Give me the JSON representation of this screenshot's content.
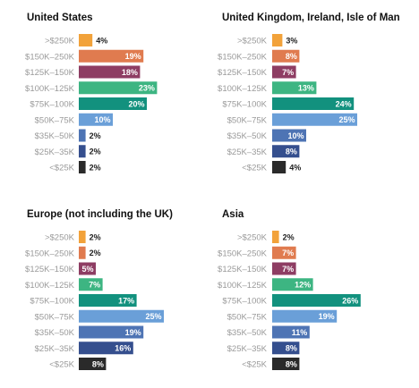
{
  "chart_data": {
    "type": "bar",
    "orientation": "horizontal",
    "categories": [
      ">$250K",
      "$150K–250K",
      "$125K–150K",
      "$100K–125K",
      "$75K–100K",
      "$50K–75K",
      "$35K–50K",
      "$25K–35K",
      "<$25K"
    ],
    "category_colors": [
      "#f2a23a",
      "#e07b4f",
      "#8e3d63",
      "#3db582",
      "#12917e",
      "#6a9fd8",
      "#4e74b4",
      "#354f8e",
      "#2a2a2a"
    ],
    "panels": [
      {
        "title": "United States",
        "values": [
          4,
          19,
          18,
          23,
          20,
          10,
          2,
          2,
          2
        ],
        "value_labels": [
          "4%",
          "19%",
          "18%",
          "23%",
          "20%",
          "10%",
          "2%",
          "2%",
          "2%"
        ]
      },
      {
        "title": "United Kingdom, Ireland, Isle of Man",
        "values": [
          3,
          8,
          7,
          13,
          24,
          25,
          10,
          8,
          4
        ],
        "value_labels": [
          "3%",
          "8%",
          "7%",
          "13%",
          "24%",
          "25%",
          "10%",
          "8%",
          "4%"
        ]
      },
      {
        "title": "Europe (not including the UK)",
        "values": [
          2,
          2,
          5,
          7,
          17,
          25,
          19,
          16,
          8
        ],
        "value_labels": [
          "2%",
          "2%",
          "5%",
          "7%",
          "17%",
          "25%",
          "19%",
          "16%",
          "8%"
        ]
      },
      {
        "title": "Asia",
        "values": [
          2,
          7,
          7,
          12,
          26,
          19,
          11,
          8,
          8
        ],
        "value_labels": [
          "2%",
          "7%",
          "7%",
          "12%",
          "26%",
          "19%",
          "11%",
          "8%",
          "8%"
        ]
      }
    ],
    "xmax": 26,
    "grid": false,
    "legend": "none"
  }
}
